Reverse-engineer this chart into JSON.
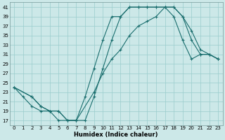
{
  "xlabel": "Humidex (Indice chaleur)",
  "background_color": "#cce8e8",
  "grid_color": "#99cccc",
  "line_color": "#1a6e6e",
  "xlim": [
    -0.5,
    23.5
  ],
  "ylim": [
    16,
    42
  ],
  "xticks": [
    0,
    1,
    2,
    3,
    4,
    5,
    6,
    7,
    8,
    9,
    10,
    11,
    12,
    13,
    14,
    15,
    16,
    17,
    18,
    19,
    20,
    21,
    22,
    23
  ],
  "yticks": [
    17,
    19,
    21,
    23,
    25,
    27,
    29,
    31,
    33,
    35,
    37,
    39,
    41
  ],
  "line1_x": [
    0,
    1,
    2,
    3,
    4,
    5,
    6,
    7,
    8,
    9,
    10,
    11,
    12,
    13,
    14,
    15,
    16,
    17,
    18,
    19,
    20,
    21,
    22,
    23
  ],
  "line1_y": [
    24,
    22,
    20,
    19,
    19,
    17,
    17,
    17,
    22,
    28,
    34,
    39,
    39,
    41,
    41,
    41,
    41,
    41,
    41,
    39,
    34,
    31,
    31,
    30
  ],
  "line2_x": [
    0,
    2,
    3,
    4,
    5,
    6,
    7,
    9,
    10,
    11,
    12,
    13,
    14,
    15,
    16,
    17,
    18,
    19,
    20,
    21,
    22,
    23
  ],
  "line2_y": [
    24,
    22,
    20,
    19,
    19,
    17,
    17,
    23,
    27,
    30,
    32,
    35,
    37,
    38,
    39,
    41,
    41,
    39,
    36,
    32,
    31,
    30
  ],
  "line3_x": [
    0,
    2,
    3,
    4,
    5,
    6,
    7,
    8,
    9,
    10,
    11,
    12,
    13,
    14,
    15,
    16,
    17,
    18,
    19,
    20,
    21,
    22,
    23
  ],
  "line3_y": [
    24,
    22,
    20,
    19,
    19,
    17,
    17,
    17,
    22,
    28,
    34,
    39,
    41,
    41,
    41,
    41,
    41,
    39,
    34,
    30,
    31,
    31,
    30
  ]
}
